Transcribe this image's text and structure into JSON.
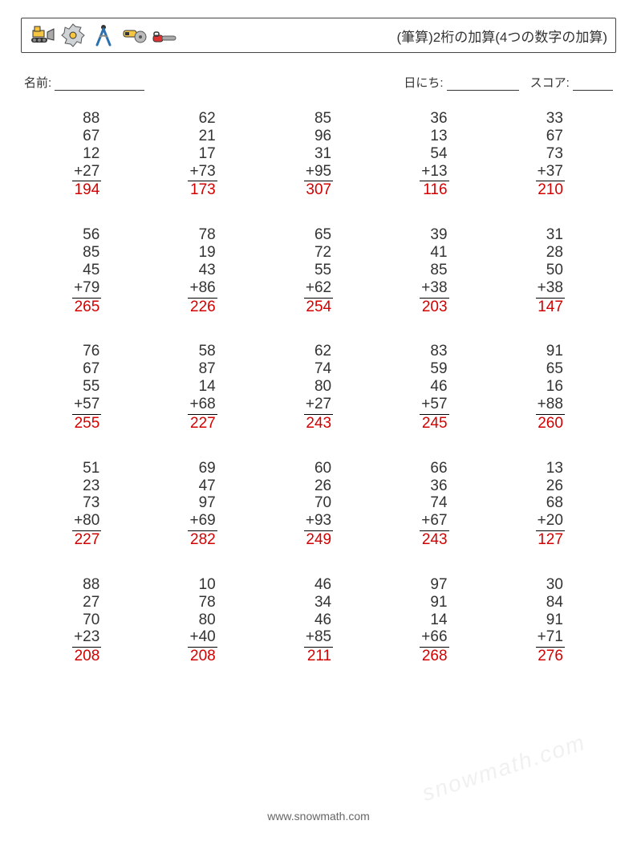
{
  "title": "(筆算)2桁の加算(4つの数字の加算)",
  "meta": {
    "name_label": "名前:",
    "date_label": "日にち:",
    "score_label": "スコア:",
    "name_underline_width": 112,
    "date_underline_width": 90,
    "score_underline_width": 50
  },
  "style": {
    "text_color": "#333333",
    "answer_color": "#d40000",
    "border_color": "#444444",
    "background": "#ffffff",
    "title_fontsize": 17,
    "number_fontsize": 19,
    "meta_fontsize": 15,
    "grid_cols": 5,
    "grid_rows": 5,
    "row_gap": 34
  },
  "icons": [
    {
      "name": "bulldozer-icon",
      "colors": {
        "body": "#f6c542",
        "track": "#333",
        "blade": "#888"
      }
    },
    {
      "name": "saw-blade-icon",
      "colors": {
        "blade": "#cfd3d6",
        "center": "#f6c542"
      }
    },
    {
      "name": "compass-icon",
      "colors": {
        "legs": "#2a6fb0",
        "top": "#333"
      }
    },
    {
      "name": "angle-grinder-icon",
      "colors": {
        "body": "#f6c542",
        "disc": "#888"
      }
    },
    {
      "name": "chainsaw-icon",
      "colors": {
        "body": "#d33",
        "bar": "#888"
      }
    }
  ],
  "problems": [
    [
      {
        "addends": [
          88,
          67,
          12,
          27
        ],
        "answer": 194
      },
      {
        "addends": [
          62,
          21,
          17,
          73
        ],
        "answer": 173
      },
      {
        "addends": [
          85,
          96,
          31,
          95
        ],
        "answer": 307
      },
      {
        "addends": [
          36,
          13,
          54,
          13
        ],
        "answer": 116
      },
      {
        "addends": [
          33,
          67,
          73,
          37
        ],
        "answer": 210
      }
    ],
    [
      {
        "addends": [
          56,
          85,
          45,
          79
        ],
        "answer": 265
      },
      {
        "addends": [
          78,
          19,
          43,
          86
        ],
        "answer": 226
      },
      {
        "addends": [
          65,
          72,
          55,
          62
        ],
        "answer": 254
      },
      {
        "addends": [
          39,
          41,
          85,
          38
        ],
        "answer": 203
      },
      {
        "addends": [
          31,
          28,
          50,
          38
        ],
        "answer": 147
      }
    ],
    [
      {
        "addends": [
          76,
          67,
          55,
          57
        ],
        "answer": 255
      },
      {
        "addends": [
          58,
          87,
          14,
          68
        ],
        "answer": 227
      },
      {
        "addends": [
          62,
          74,
          80,
          27
        ],
        "answer": 243
      },
      {
        "addends": [
          83,
          59,
          46,
          57
        ],
        "answer": 245
      },
      {
        "addends": [
          91,
          65,
          16,
          88
        ],
        "answer": 260
      }
    ],
    [
      {
        "addends": [
          51,
          23,
          73,
          80
        ],
        "answer": 227
      },
      {
        "addends": [
          69,
          47,
          97,
          69
        ],
        "answer": 282
      },
      {
        "addends": [
          60,
          26,
          70,
          93
        ],
        "answer": 249
      },
      {
        "addends": [
          66,
          36,
          74,
          67
        ],
        "answer": 243
      },
      {
        "addends": [
          13,
          26,
          68,
          20
        ],
        "answer": 127
      }
    ],
    [
      {
        "addends": [
          88,
          27,
          70,
          23
        ],
        "answer": 208
      },
      {
        "addends": [
          10,
          78,
          80,
          40
        ],
        "answer": 208
      },
      {
        "addends": [
          46,
          34,
          46,
          85
        ],
        "answer": 211
      },
      {
        "addends": [
          97,
          91,
          14,
          66
        ],
        "answer": 268
      },
      {
        "addends": [
          30,
          84,
          91,
          71
        ],
        "answer": 276
      }
    ]
  ],
  "footer": "www.snowmath.com",
  "watermark": "snowmath.com"
}
